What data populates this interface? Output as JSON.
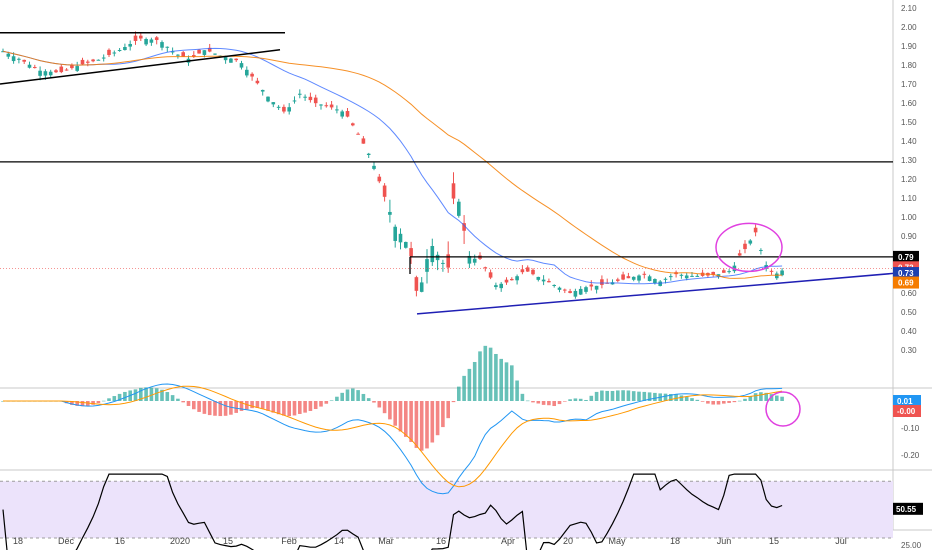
{
  "colors": {
    "up": "#26a69a",
    "down": "#ef5350",
    "sma_fast": "#2962ff",
    "sma_slow": "#f57c00",
    "macd_line": "#2196f3",
    "signal_line": "#ff9800",
    "rsi_line": "#000000",
    "rsi_band": "#ece3fb",
    "circle": "#e040e0",
    "price_line": "#ef5350"
  },
  "price_axis": {
    "labels": [
      "2.10",
      "2.00",
      "1.90",
      "1.80",
      "1.70",
      "1.60",
      "1.50",
      "1.40",
      "1.30",
      "1.20",
      "1.10",
      "1.00",
      "0.90",
      "0.80",
      "0.70",
      "0.60",
      "0.50",
      "0.40",
      "0.30"
    ]
  },
  "price_badges": [
    {
      "label": "0.79",
      "color": "#000000"
    },
    {
      "label": "0.73",
      "color": "#ef5350"
    },
    {
      "label": "0.73",
      "color": "#1e40af"
    },
    {
      "label": "0.69",
      "color": "#f57c00"
    }
  ],
  "macd_axis": {
    "labels": [
      "-0.10",
      "-0.20"
    ]
  },
  "macd_badges": [
    {
      "label": "0.01",
      "color": "#2196f3"
    },
    {
      "label": "-0.00",
      "color": "#ef5350"
    }
  ],
  "rsi_axis": {
    "labels": [
      "25.00"
    ]
  },
  "rsi_badge": {
    "label": "50.55",
    "color": "#000000"
  },
  "time_axis": {
    "labels": [
      "18",
      "Dec",
      "16",
      "2020",
      "15",
      "Feb",
      "14",
      "Mar",
      "16",
      "Apr",
      "20",
      "May",
      "18",
      "Jun",
      "15",
      "Jul"
    ]
  },
  "chart_data": [
    {
      "type": "candlestick",
      "title": "",
      "ylim": [
        0.25,
        2.12
      ],
      "horizontal_lines": [
        1.29,
        0.79
      ],
      "annotations": [
        "rising wedge trendlines Nov–Jan",
        "rising support trendline Mar–Jun",
        "circle around early-June spike"
      ],
      "series": [
        {
          "name": "SMA fast",
          "last": 0.73
        },
        {
          "name": "SMA slow",
          "last": 0.69
        }
      ],
      "last_price": 0.73
    },
    {
      "type": "line",
      "title": "",
      "ylim": [
        -0.25,
        0.06
      ],
      "series": [
        {
          "name": "MACD",
          "last": 0.01
        },
        {
          "name": "Signal",
          "last": -0.0
        }
      ]
    },
    {
      "type": "line",
      "title": "",
      "ylim": [
        10,
        80
      ],
      "series": [
        {
          "name": "RSI",
          "last": 50.55
        }
      ]
    }
  ]
}
